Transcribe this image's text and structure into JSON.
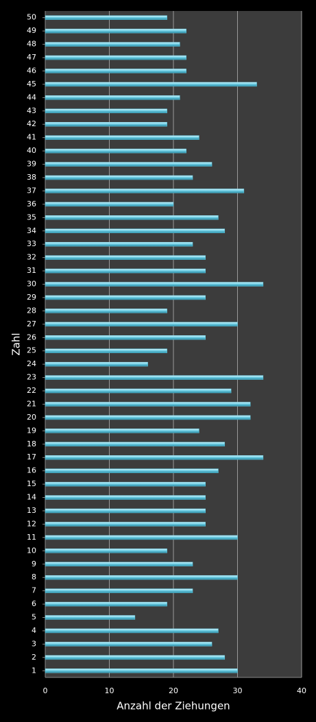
{
  "chart_data": {
    "type": "hbar",
    "x_label": "Anzahl der Ziehungen",
    "y_label": "Zahl",
    "categories": [
      "1",
      "2",
      "3",
      "4",
      "5",
      "6",
      "7",
      "8",
      "9",
      "10",
      "11",
      "12",
      "13",
      "14",
      "15",
      "16",
      "17",
      "18",
      "19",
      "20",
      "21",
      "22",
      "23",
      "24",
      "25",
      "26",
      "27",
      "28",
      "29",
      "30",
      "31",
      "32",
      "33",
      "34",
      "35",
      "36",
      "37",
      "38",
      "39",
      "40",
      "41",
      "42",
      "43",
      "44",
      "45",
      "46",
      "47",
      "48",
      "49",
      "50"
    ],
    "values": [
      30,
      28,
      26,
      27,
      14,
      19,
      23,
      30,
      23,
      19,
      30,
      25,
      25,
      25,
      25,
      27,
      34,
      28,
      24,
      32,
      32,
      29,
      34,
      16,
      19,
      25,
      30,
      19,
      25,
      34,
      25,
      25,
      23,
      28,
      27,
      20,
      31,
      23,
      26,
      22,
      24,
      19,
      19,
      21,
      33,
      22,
      22,
      21,
      22,
      19
    ],
    "color": "#5cc6de",
    "xlim": [
      0,
      40
    ],
    "xticks": [
      0,
      10,
      20,
      30,
      40
    ],
    "grid": true
  }
}
